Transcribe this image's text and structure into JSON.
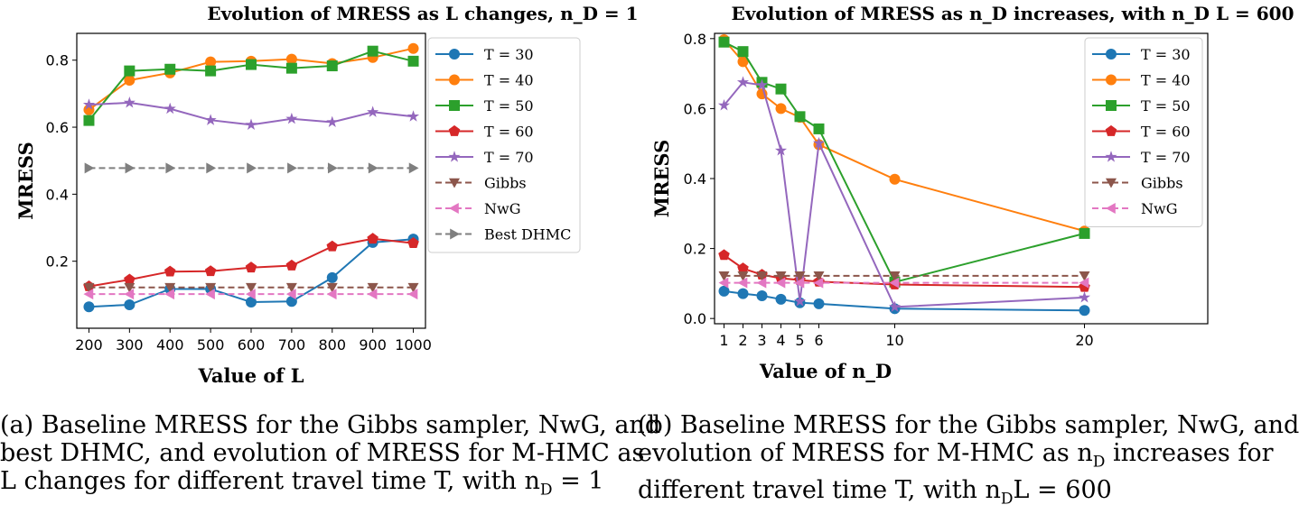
{
  "chart_data": [
    {
      "type": "line",
      "title": "Evolution of MRESS as L changes, n_D = 1",
      "xlabel": "Value of L",
      "ylabel": "MRESS",
      "x": [
        200,
        300,
        400,
        500,
        600,
        700,
        800,
        900,
        1000
      ],
      "xlim": [
        170,
        1030
      ],
      "ylim": [
        0.0,
        0.88
      ],
      "xticks": [
        "200",
        "300",
        "400",
        "500",
        "600",
        "700",
        "800",
        "900",
        "1000"
      ],
      "yticks": [
        "0.2",
        "0.4",
        "0.6",
        "0.8"
      ],
      "ytick_values": [
        0.2,
        0.4,
        0.6,
        0.8
      ],
      "legend_position": "top-right",
      "series": [
        {
          "name": "T = 30",
          "color": "#1f77b4",
          "marker": "circle",
          "dash": "solid",
          "values": [
            0.064,
            0.07,
            0.117,
            0.117,
            0.078,
            0.08,
            0.151,
            0.256,
            0.266
          ]
        },
        {
          "name": "T = 40",
          "color": "#ff7f0e",
          "marker": "circle",
          "dash": "solid",
          "values": [
            0.652,
            0.74,
            0.762,
            0.795,
            0.797,
            0.803,
            0.79,
            0.808,
            0.835
          ]
        },
        {
          "name": "T = 50",
          "color": "#2ca02c",
          "marker": "square",
          "dash": "solid",
          "values": [
            0.62,
            0.768,
            0.773,
            0.768,
            0.787,
            0.776,
            0.783,
            0.827,
            0.797
          ]
        },
        {
          "name": "T = 60",
          "color": "#d62728",
          "marker": "pentagon",
          "dash": "solid",
          "values": [
            0.125,
            0.145,
            0.169,
            0.17,
            0.181,
            0.187,
            0.244,
            0.267,
            0.254
          ]
        },
        {
          "name": "T = 70",
          "color": "#9467bd",
          "marker": "star",
          "dash": "solid",
          "values": [
            0.667,
            0.673,
            0.655,
            0.621,
            0.607,
            0.625,
            0.615,
            0.645,
            0.632
          ]
        },
        {
          "name": "Gibbs",
          "color": "#8c564b",
          "marker": "tri-down",
          "dash": "dashed",
          "values": [
            0.122,
            0.122,
            0.122,
            0.122,
            0.122,
            0.122,
            0.122,
            0.122,
            0.122
          ]
        },
        {
          "name": "NwG",
          "color": "#e377c2",
          "marker": "tri-left",
          "dash": "dashed",
          "values": [
            0.102,
            0.102,
            0.102,
            0.102,
            0.102,
            0.102,
            0.102,
            0.102,
            0.102
          ]
        },
        {
          "name": "Best DHMC",
          "color": "#7f7f7f",
          "marker": "tri-right",
          "dash": "dashed",
          "values": [
            0.478,
            0.478,
            0.478,
            0.478,
            0.478,
            0.478,
            0.478,
            0.478,
            0.478
          ]
        }
      ]
    },
    {
      "type": "line",
      "title": "Evolution of MRESS as n_D increases, with n_D L = 600",
      "xlabel": "Value of n_D",
      "ylabel": "MRESS",
      "x": [
        1,
        2,
        3,
        4,
        5,
        6,
        10,
        20
      ],
      "xlim": [
        0.5,
        26.5
      ],
      "ylim": [
        -0.015,
        0.815
      ],
      "xticks": [
        "1",
        "2",
        "3",
        "4",
        "5",
        "6",
        "10",
        "20"
      ],
      "yticks": [
        "0.0",
        "0.2",
        "0.4",
        "0.6",
        "0.8"
      ],
      "ytick_values": [
        0.0,
        0.2,
        0.4,
        0.6,
        0.8
      ],
      "legend_position": "top-right",
      "series": [
        {
          "name": "T = 30",
          "color": "#1f77b4",
          "marker": "circle",
          "dash": "solid",
          "values": [
            0.078,
            0.071,
            0.065,
            0.055,
            0.045,
            0.042,
            0.028,
            0.023
          ]
        },
        {
          "name": "T = 40",
          "color": "#ff7f0e",
          "marker": "circle",
          "dash": "solid",
          "values": [
            0.797,
            0.734,
            0.642,
            0.6,
            0.575,
            0.497,
            0.398,
            0.25
          ]
        },
        {
          "name": "T = 50",
          "color": "#2ca02c",
          "marker": "square",
          "dash": "solid",
          "values": [
            0.79,
            0.763,
            0.675,
            0.656,
            0.577,
            0.542,
            0.104,
            0.243
          ]
        },
        {
          "name": "T = 60",
          "color": "#d62728",
          "marker": "pentagon",
          "dash": "solid",
          "values": [
            0.181,
            0.143,
            0.125,
            0.115,
            0.11,
            0.105,
            0.097,
            0.09
          ]
        },
        {
          "name": "T = 70",
          "color": "#9467bd",
          "marker": "star",
          "dash": "solid",
          "values": [
            0.609,
            0.675,
            0.667,
            0.48,
            0.049,
            0.501,
            0.033,
            0.06
          ]
        },
        {
          "name": "Gibbs",
          "color": "#8c564b",
          "marker": "tri-down",
          "dash": "dashed",
          "values": [
            0.122,
            0.122,
            0.122,
            0.122,
            0.122,
            0.122,
            0.122,
            0.122
          ]
        },
        {
          "name": "NwG",
          "color": "#e377c2",
          "marker": "tri-left",
          "dash": "dashed",
          "values": [
            0.102,
            0.102,
            0.102,
            0.102,
            0.102,
            0.102,
            0.102,
            0.102
          ]
        }
      ]
    }
  ],
  "captions": {
    "a": {
      "line1": "(a) Baseline MRESS for the Gibbs sampler, NwG, and",
      "line2": "best DHMC, and evolution of MRESS for M-HMC as",
      "line3": "L changes for different travel time T, with n",
      "line3_sub": "D",
      "line3_end": " = 1"
    },
    "b": {
      "line1": "(b) Baseline MRESS for the Gibbs sampler, NwG, and",
      "line2a": "evolution of MRESS for M-HMC as n",
      "line2_sub": "D",
      "line2b": " increases for",
      "line3a": "different travel time T, with n",
      "line3_sub": "D",
      "line3b": "L = 600"
    }
  }
}
